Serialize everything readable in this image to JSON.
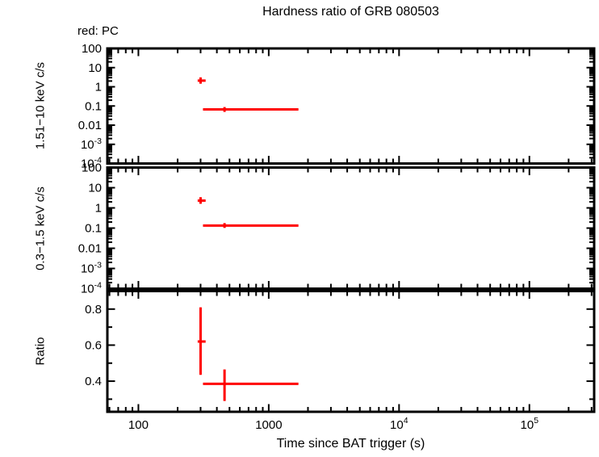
{
  "chart_data": {
    "type": "scatter",
    "title": "Hardness ratio of GRB 080503",
    "annotation": "red: PC",
    "xlabel": "Time since BAT trigger (s)",
    "xscale": "log",
    "xlim": [
      57.8,
      314000
    ],
    "x_major_ticks": [
      {
        "log": 2,
        "label": "100"
      },
      {
        "log": 3,
        "label": "1000"
      },
      {
        "log": 4,
        "label": "10",
        "sup": "4"
      },
      {
        "log": 5,
        "label": "10",
        "sup": "5"
      }
    ],
    "series_legend": [
      {
        "name": "PC",
        "color": "#ff0000"
      }
    ],
    "axis_color": "#000000",
    "background_color": "#ffffff",
    "panels": [
      {
        "name": "hard-band-rate",
        "ylabel": "1.51−10 keV c/s",
        "yscale": "log",
        "ylim": [
          0.0001,
          100
        ],
        "yticks": [
          {
            "log": 2,
            "label": "100"
          },
          {
            "log": 1,
            "label": "10"
          },
          {
            "log": 0,
            "label": "1"
          },
          {
            "log": -1,
            "label": "0.1"
          },
          {
            "log": -2,
            "label": "0.01"
          },
          {
            "log": -3,
            "label": "10",
            "sup": "-3"
          },
          {
            "log": -4,
            "label": "10",
            "sup": "-4"
          }
        ],
        "points": [
          {
            "t": 300,
            "t_lo": 285,
            "t_hi": 328,
            "y": 2.1,
            "y_lo": 1.45,
            "y_hi": 3.1
          },
          {
            "t": 458,
            "t_lo": 313,
            "t_hi": 1690,
            "y": 0.066,
            "y_lo": 0.049,
            "y_hi": 0.088
          }
        ]
      },
      {
        "name": "soft-band-rate",
        "ylabel": "0.3−1.5 keV c/s",
        "yscale": "log",
        "ylim": [
          0.0001,
          100
        ],
        "yticks": [
          {
            "log": 2,
            "label": "100"
          },
          {
            "log": 1,
            "label": "10"
          },
          {
            "log": 0,
            "label": "1"
          },
          {
            "log": -1,
            "label": "0.1"
          },
          {
            "log": -2,
            "label": "0.01"
          },
          {
            "log": -3,
            "label": "10",
            "sup": "-3"
          },
          {
            "log": -4,
            "label": "10",
            "sup": "-4"
          }
        ],
        "points": [
          {
            "t": 300,
            "t_lo": 285,
            "t_hi": 328,
            "y": 2.3,
            "y_lo": 1.6,
            "y_hi": 3.4
          },
          {
            "t": 458,
            "t_lo": 313,
            "t_hi": 1690,
            "y": 0.134,
            "y_lo": 0.102,
            "y_hi": 0.177
          }
        ]
      },
      {
        "name": "hardness-ratio",
        "ylabel": "Ratio",
        "yscale": "linear",
        "ylim": [
          0.23,
          0.9
        ],
        "yticks": [
          {
            "v": 0.8,
            "label": "0.8"
          },
          {
            "v": 0.6,
            "label": "0.6"
          },
          {
            "v": 0.4,
            "label": "0.4"
          }
        ],
        "yminor": [
          0.3,
          0.5,
          0.7
        ],
        "points": [
          {
            "t": 300,
            "t_lo": 285,
            "t_hi": 328,
            "y": 0.62,
            "y_lo": 0.435,
            "y_hi": 0.81
          },
          {
            "t": 458,
            "t_lo": 313,
            "t_hi": 1690,
            "y": 0.385,
            "y_lo": 0.29,
            "y_hi": 0.465
          }
        ]
      }
    ]
  }
}
